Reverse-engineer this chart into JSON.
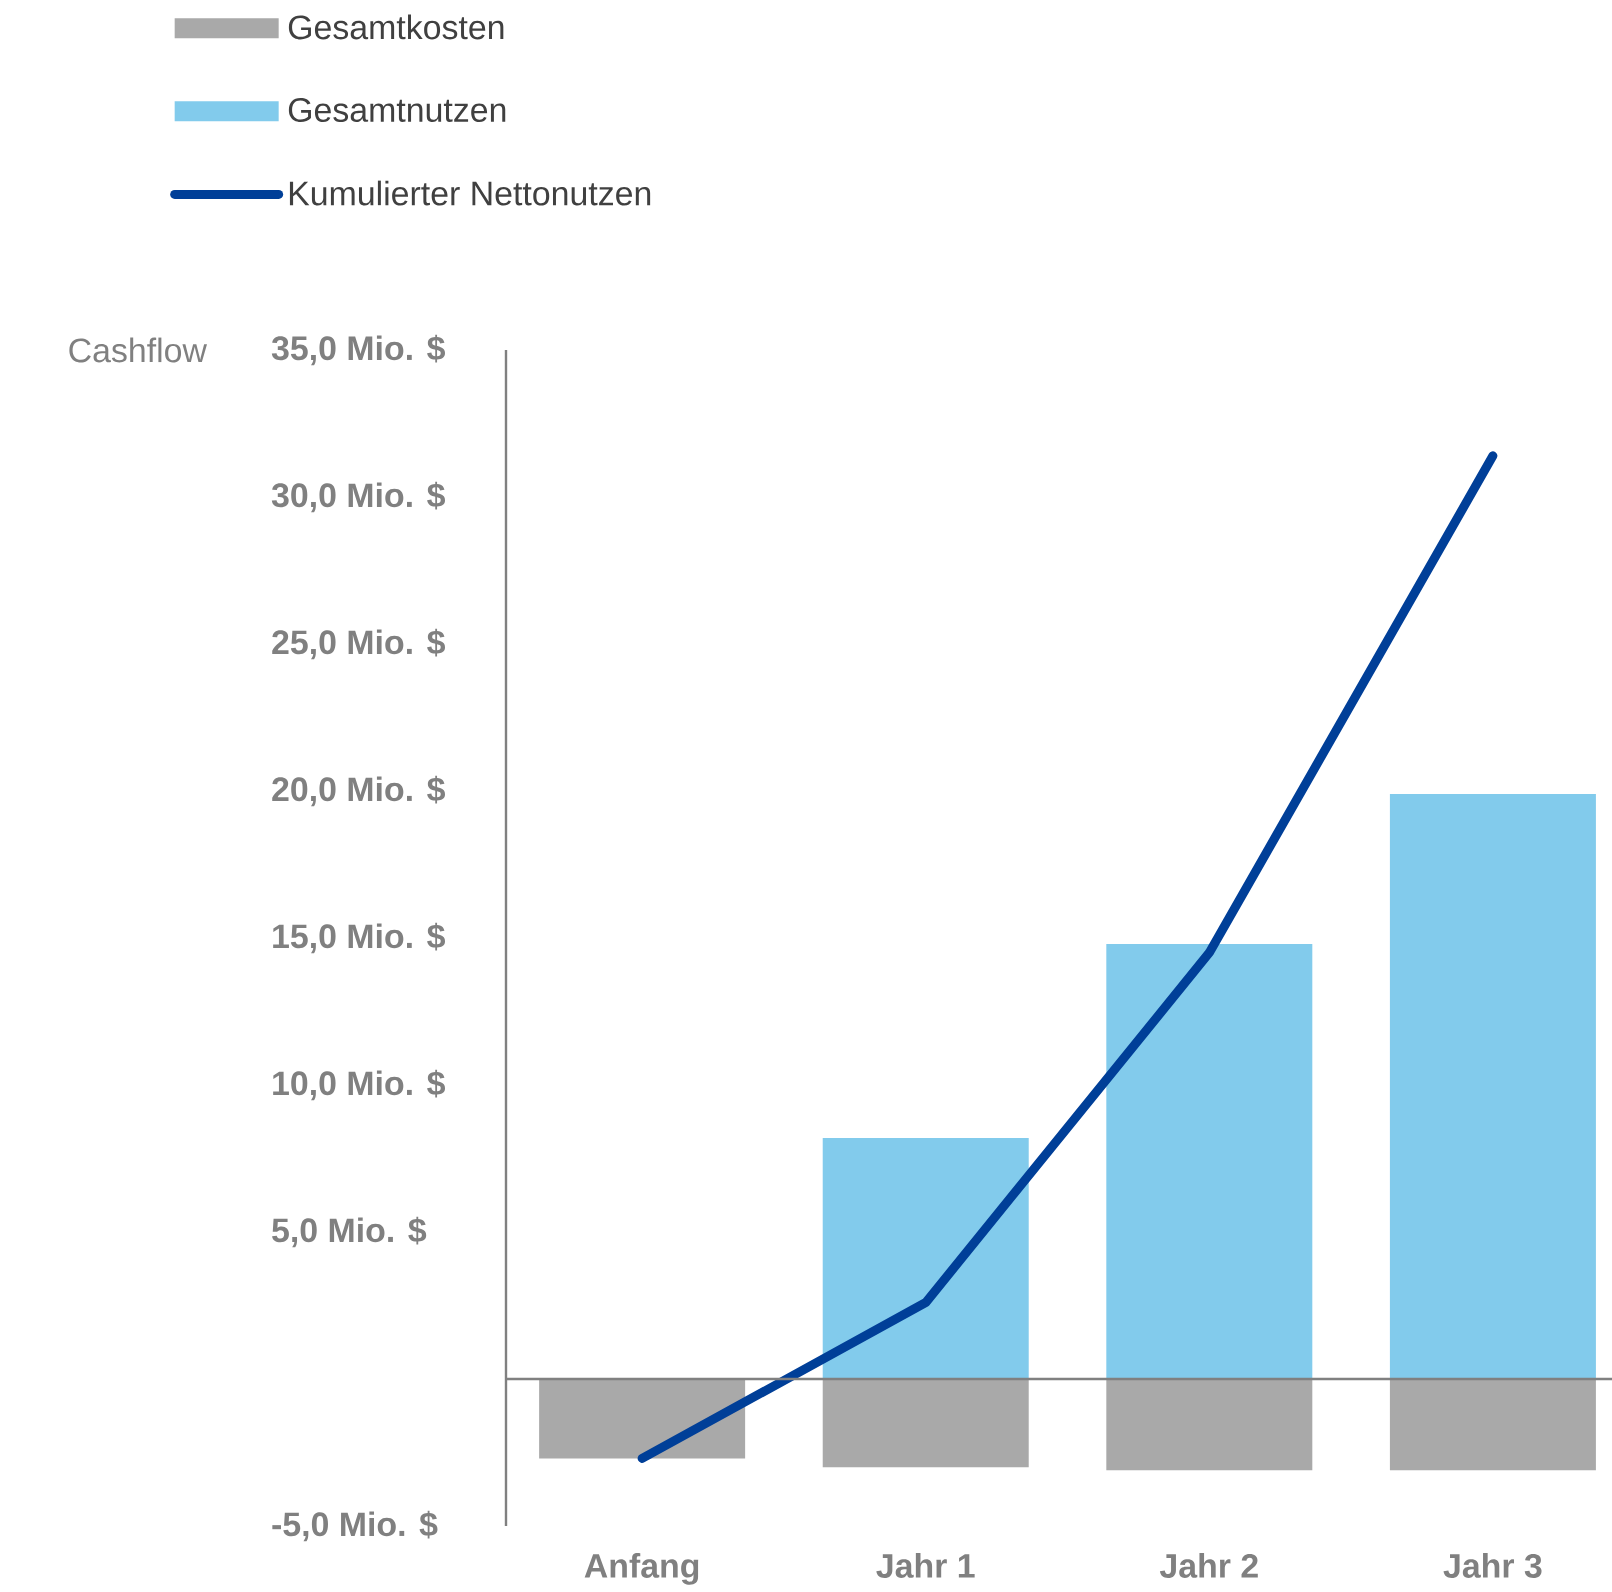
{
  "chart_data": {
    "type": "bar",
    "ylabel": "Cashflow",
    "categories": [
      "Anfang",
      "Jahr 1",
      "Jahr 2",
      "Jahr 3"
    ],
    "stacked": true,
    "series": [
      {
        "name": "Gesamtkosten",
        "color": "#a9a9a9",
        "values": [
          -2.7,
          -3.0,
          -3.1,
          -3.1
        ]
      },
      {
        "name": "Gesamtnutzen",
        "color": "#82cbec",
        "values": [
          0,
          8.2,
          14.8,
          19.9
        ]
      },
      {
        "name": "Kumulierter Nettonutzen",
        "type": "line",
        "color": "#003f98",
        "values": [
          -2.7,
          2.6,
          14.5,
          31.4
        ]
      }
    ],
    "ylim": [
      -5,
      35
    ],
    "yticks": [
      {
        "value": -5,
        "label": "-5,0 Mio. $"
      },
      {
        "value": 0,
        "label": null
      },
      {
        "value": 5,
        "label": "5,0 Mio. $"
      },
      {
        "value": 10,
        "label": "10,0 Mio. $"
      },
      {
        "value": 15,
        "label": "15,0 Mio. $"
      },
      {
        "value": 20,
        "label": "20,0 Mio. $"
      },
      {
        "value": 25,
        "label": "25,0 Mio. $"
      },
      {
        "value": 30,
        "label": "30,0 Mio. $"
      },
      {
        "value": 35,
        "label": "35,0 Mio. $"
      }
    ],
    "legend": "top left"
  }
}
